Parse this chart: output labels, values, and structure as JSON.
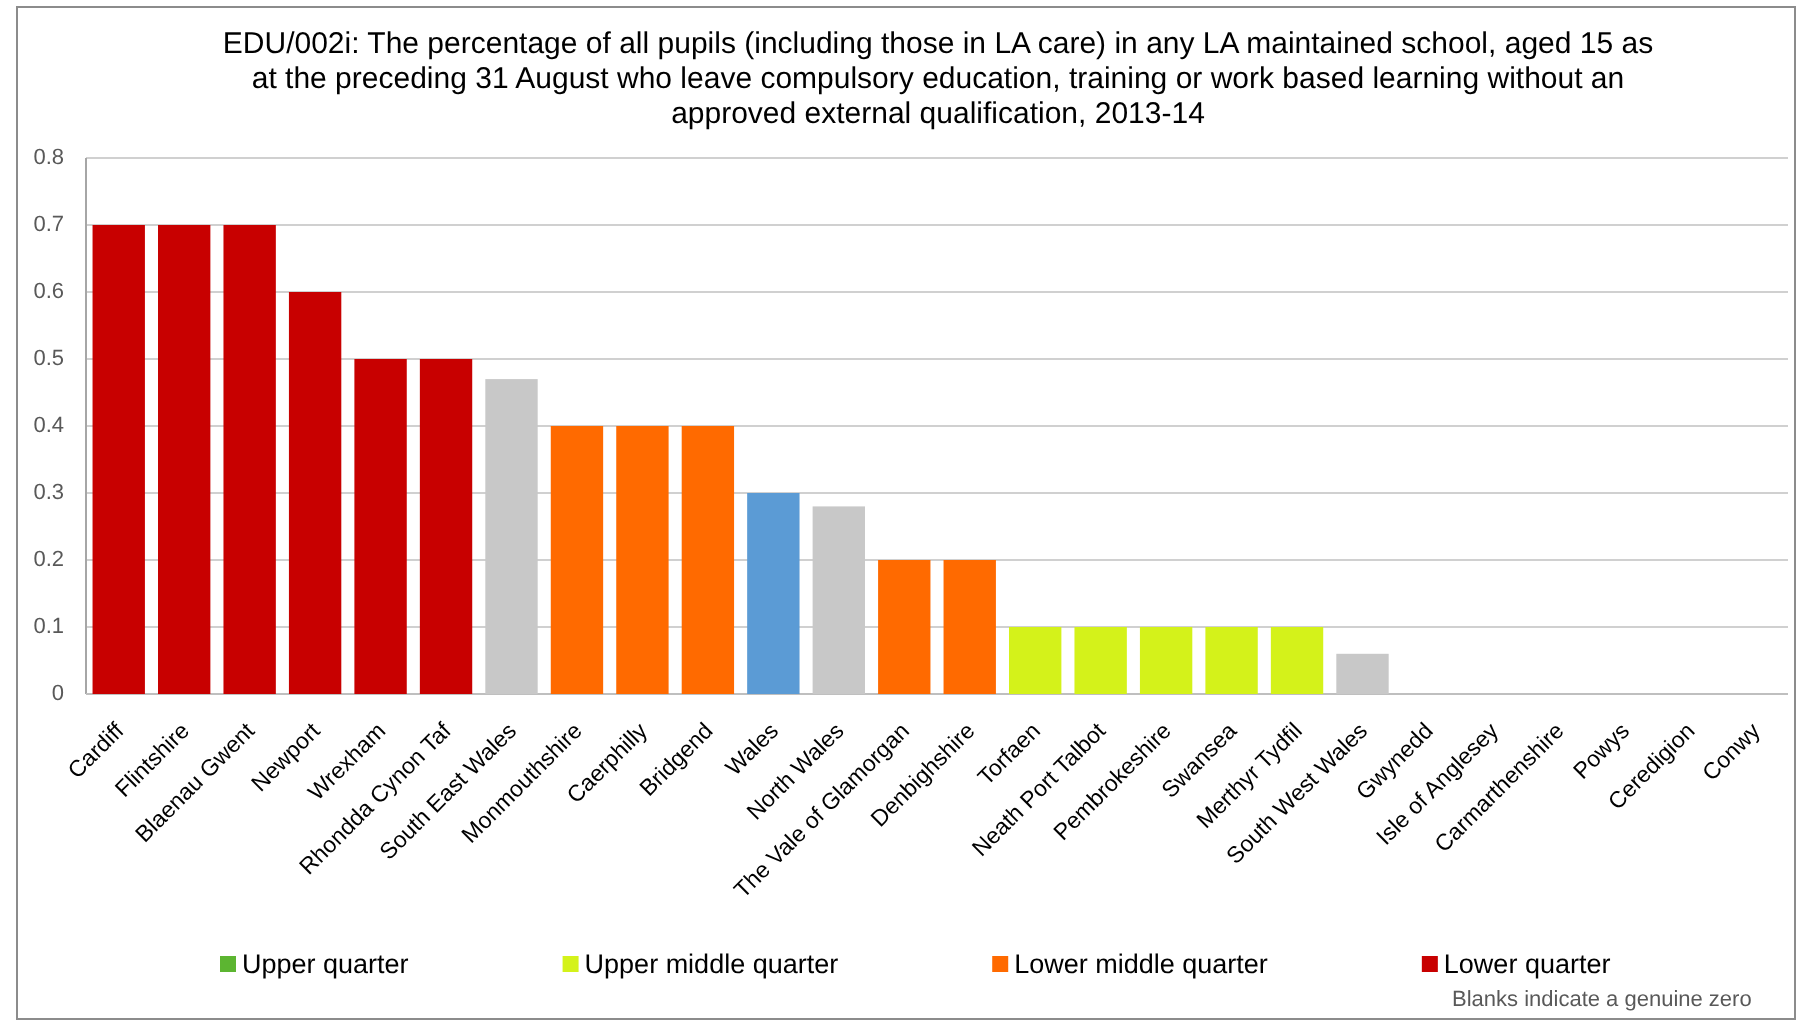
{
  "chart_data": {
    "type": "bar",
    "title": "EDU/002i: The percentage of all pupils (including those in LA care) in any LA maintained school, aged 15 as at the preceding 31 August who leave compulsory education, training or work based learning without an approved external qualification, 2013-14",
    "categories": [
      "Cardiff",
      "Flintshire",
      "Blaenau Gwent",
      "Newport",
      "Wrexham",
      "Rhondda Cynon Taf",
      "South East Wales",
      "Monmouthshire",
      "Caerphilly",
      "Bridgend",
      "Wales",
      "North Wales",
      "The Vale of Glamorgan",
      "Denbighshire",
      "Torfaen",
      "Neath Port Talbot",
      "Pembrokeshire",
      "Swansea",
      "Merthyr Tydfil",
      "South West Wales",
      "Gwynedd",
      "Isle of Anglesey",
      "Carmarthenshire",
      "Powys",
      "Ceredigion",
      "Conwy"
    ],
    "series": [
      {
        "name": "Upper quarter",
        "color": "#5cb531",
        "values": [
          null,
          null,
          null,
          null,
          null,
          null,
          null,
          null,
          null,
          null,
          null,
          null,
          null,
          null,
          null,
          null,
          null,
          null,
          null,
          null,
          0,
          0,
          0,
          0,
          0,
          0
        ]
      },
      {
        "name": "Upper middle quarter",
        "color": "#d4f21a",
        "values": [
          null,
          null,
          null,
          null,
          null,
          null,
          null,
          null,
          null,
          null,
          null,
          null,
          null,
          null,
          0.1,
          0.1,
          0.1,
          0.1,
          0.1,
          null,
          null,
          null,
          null,
          null,
          null,
          null
        ]
      },
      {
        "name": "Lower middle quarter",
        "color": "#ff6a00",
        "values": [
          null,
          null,
          null,
          null,
          null,
          null,
          null,
          0.4,
          0.4,
          0.4,
          null,
          null,
          0.2,
          0.2,
          null,
          null,
          null,
          null,
          null,
          null,
          null,
          null,
          null,
          null,
          null,
          null
        ]
      },
      {
        "name": "Lower quarter",
        "color": "#c80000",
        "values": [
          0.7,
          0.7,
          0.7,
          0.6,
          0.5,
          0.5,
          null,
          null,
          null,
          null,
          null,
          null,
          null,
          null,
          null,
          null,
          null,
          null,
          null,
          null,
          null,
          null,
          null,
          null,
          null,
          null
        ]
      },
      {
        "color": "#c8c8c8",
        "values": [
          null,
          null,
          null,
          null,
          null,
          null,
          0.47,
          null,
          null,
          null,
          null,
          0.28,
          null,
          null,
          null,
          null,
          null,
          null,
          null,
          0.06,
          null,
          null,
          null,
          null,
          null,
          null
        ]
      },
      {
        "color": "#5b9bd5",
        "values": [
          null,
          null,
          null,
          null,
          null,
          null,
          null,
          null,
          null,
          null,
          0.3,
          null,
          null,
          null,
          null,
          null,
          null,
          null,
          null,
          null,
          null,
          null,
          null,
          null,
          null,
          null
        ]
      }
    ],
    "stacked": true,
    "ylim": [
      0,
      0.8
    ],
    "yticks": [
      0,
      0.1,
      0.2,
      0.3,
      0.4,
      0.5,
      0.6,
      0.7,
      0.8
    ],
    "grid": "y",
    "legend": "bottom",
    "annotations": [
      "Blanks indicate a genuine zero"
    ]
  }
}
